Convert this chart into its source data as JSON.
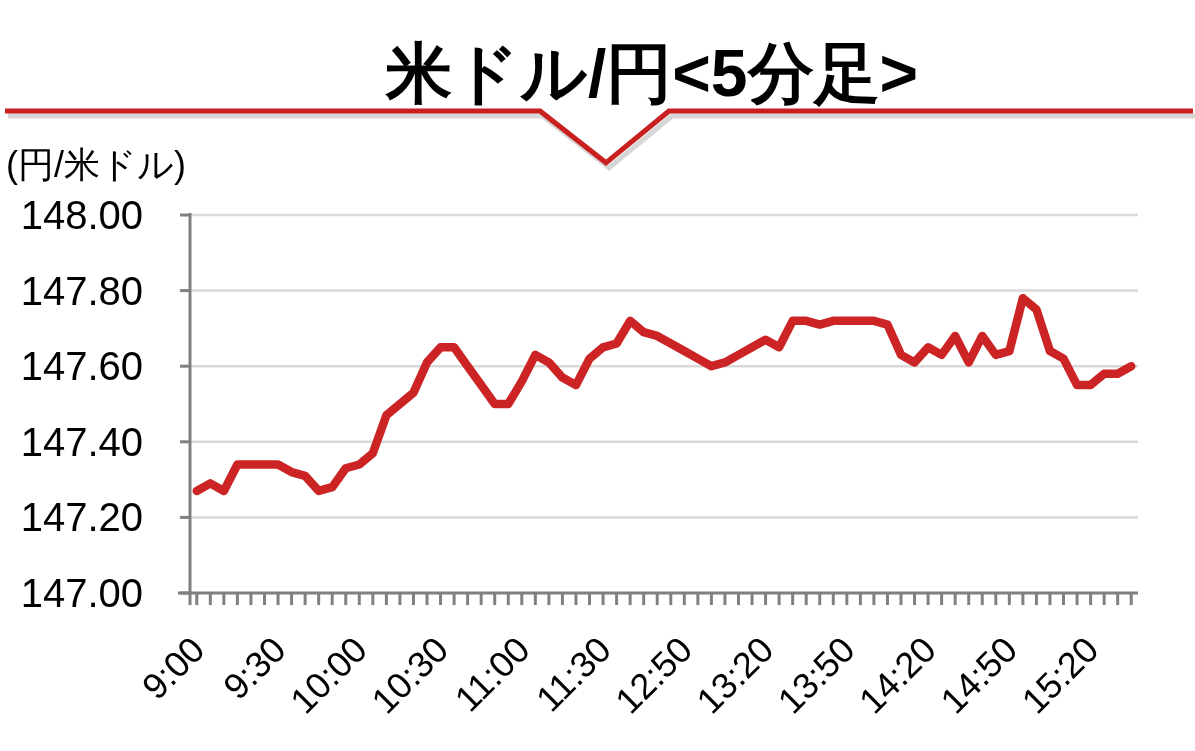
{
  "chart_data": {
    "type": "line",
    "title": "米ドル/円<5分足>",
    "ylabel": "(円/米ドル)",
    "categories": [
      "9:00",
      null,
      null,
      null,
      null,
      null,
      "9:30",
      null,
      null,
      null,
      null,
      null,
      "10:00",
      null,
      null,
      null,
      null,
      null,
      "10:30",
      null,
      null,
      null,
      null,
      null,
      "11:00",
      null,
      null,
      null,
      null,
      null,
      "11:30",
      null,
      null,
      null,
      null,
      null,
      "12:50",
      null,
      null,
      null,
      null,
      null,
      "13:20",
      null,
      null,
      null,
      null,
      null,
      "13:50",
      null,
      null,
      null,
      null,
      null,
      "14:20",
      null,
      null,
      null,
      null,
      null,
      "14:50",
      null,
      null,
      null,
      null,
      null,
      "15:20",
      null,
      null,
      null
    ],
    "series": [
      {
        "color": "#cc2424",
        "values": [
          147.27,
          147.29,
          147.27,
          147.34,
          147.34,
          147.34,
          147.34,
          147.32,
          147.31,
          147.27,
          147.28,
          147.33,
          147.34,
          147.37,
          147.47,
          147.5,
          147.53,
          147.61,
          147.65,
          147.65,
          147.6,
          147.55,
          147.5,
          147.5,
          147.56,
          147.63,
          147.61,
          147.57,
          147.55,
          147.62,
          147.65,
          147.66,
          147.72,
          147.69,
          147.68,
          147.66,
          147.64,
          147.62,
          147.6,
          147.61,
          147.63,
          147.65,
          147.67,
          147.65,
          147.72,
          147.72,
          147.71,
          147.72,
          147.72,
          147.72,
          147.72,
          147.71,
          147.63,
          147.61,
          147.65,
          147.63,
          147.68,
          147.61,
          147.68,
          147.63,
          147.64,
          147.78,
          147.75,
          147.64,
          147.62,
          147.55,
          147.55,
          147.58,
          147.58,
          147.6
        ]
      }
    ],
    "ylim": [
      147,
      148
    ],
    "yticks": [
      {
        "value": 147,
        "label": "147.00"
      },
      {
        "value": 147.2,
        "label": "147.20"
      },
      {
        "value": 147.4,
        "label": "147.40"
      },
      {
        "value": 147.6,
        "label": "147.60"
      },
      {
        "value": 147.8,
        "label": "147.80"
      },
      {
        "value": 148,
        "label": "148.00"
      }
    ],
    "grid": "y",
    "line_style": "solid"
  }
}
